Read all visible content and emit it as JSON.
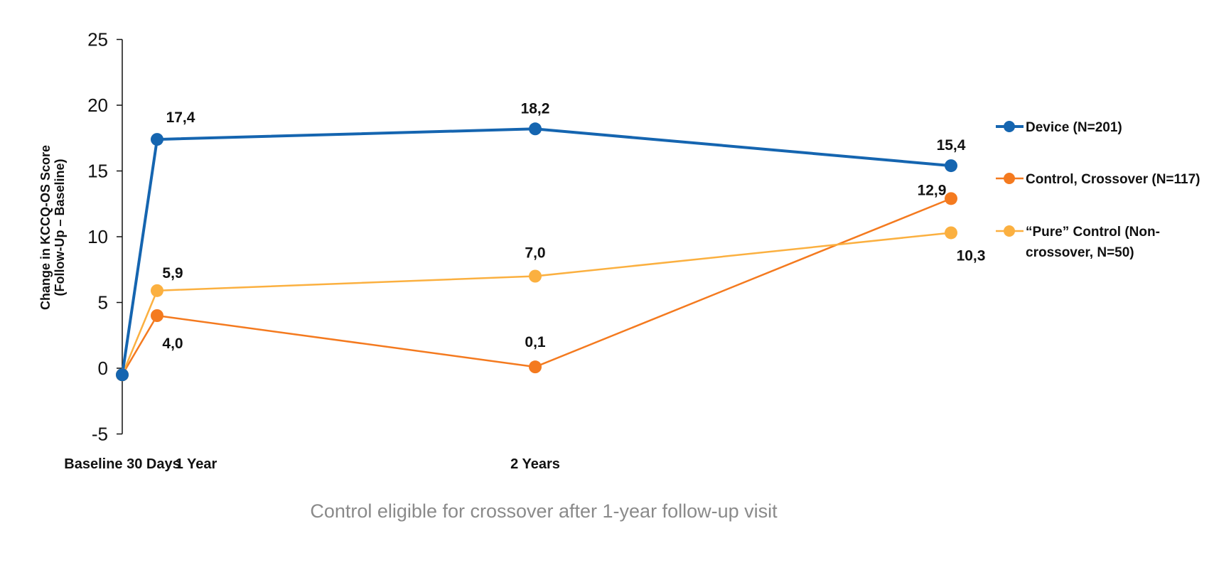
{
  "chart_data": {
    "type": "line",
    "title": "",
    "ylabel_lines": [
      "Change in KCCQ-OS Score",
      "(Follow-Up – Baseline)"
    ],
    "ylim": [
      -5,
      25
    ],
    "yticks": [
      25,
      20,
      15,
      10,
      5,
      0,
      -5
    ],
    "grid": false,
    "legend_position": "right",
    "categories": [
      "Baseline",
      "30 Days",
      "1 Year",
      "2 Years"
    ],
    "x_tick_labels": [
      "Baseline 30 Days",
      "1 Year",
      "2 Years"
    ],
    "series": [
      {
        "name": "Device (N=201)",
        "legend_lines": [
          "Device (N=201)"
        ],
        "color": "#1565B0",
        "values": [
          -0.5,
          17.4,
          18.2,
          15.4
        ],
        "labels": [
          "",
          "17,4",
          "18,2",
          "15,4"
        ]
      },
      {
        "name": "Control, Crossover (N=117)",
        "legend_lines": [
          "Control, Crossover (N=117)"
        ],
        "color": "#F47A1F",
        "values": [
          -0.5,
          4.0,
          0.1,
          12.9
        ],
        "labels": [
          "",
          "4,0",
          "0,1",
          "12,9"
        ]
      },
      {
        "name": "“Pure” Control (Non-crossover, N=50)",
        "legend_lines": [
          "“Pure” Control (Non-",
          "crossover, N=50)"
        ],
        "color": "#FBB040",
        "values": [
          -0.5,
          5.9,
          7.0,
          10.3
        ],
        "labels": [
          "",
          "5,9",
          "7,0",
          "10,3"
        ]
      }
    ],
    "footnote": "Control eligible for crossover after 1-year follow-up visit"
  }
}
